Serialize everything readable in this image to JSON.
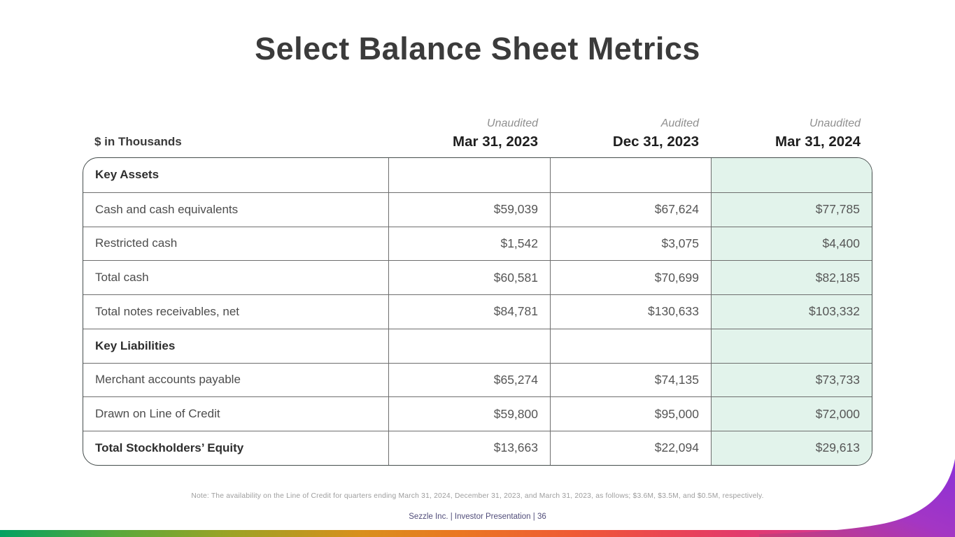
{
  "slide": {
    "title": "Select Balance Sheet Metrics",
    "note": "Note: The availability on the Line of Credit for quarters ending March 31, 2024, December 31, 2023, and March 31, 2023, as follows; $3.6M, $3.5M, and $0.5M, respectively.",
    "footer": "Sezzle Inc. | Investor Presentation | 36",
    "page_number": "36"
  },
  "table": {
    "units_label": "$ in Thousands",
    "columns": [
      {
        "audit_status": "Unaudited",
        "date": "Mar 31, 2023",
        "highlighted": false
      },
      {
        "audit_status": "Audited",
        "date": "Dec 31, 2023",
        "highlighted": false
      },
      {
        "audit_status": "Unaudited",
        "date": "Mar 31, 2024",
        "highlighted": true
      }
    ],
    "rows": [
      {
        "label": "Key Assets",
        "type": "section",
        "indent": 0,
        "values": [
          "",
          "",
          ""
        ]
      },
      {
        "label": "Cash and cash equivalents",
        "type": "item",
        "indent": 2,
        "values": [
          "$59,039",
          "$67,624",
          "$77,785"
        ]
      },
      {
        "label": "Restricted cash",
        "type": "item",
        "indent": 2,
        "values": [
          "$1,542",
          "$3,075",
          "$4,400"
        ]
      },
      {
        "label": "Total cash",
        "type": "item",
        "indent": 1,
        "values": [
          "$60,581",
          "$70,699",
          "$82,185"
        ]
      },
      {
        "label": "Total notes receivables, net",
        "type": "item",
        "indent": 1,
        "values": [
          "$84,781",
          "$130,633",
          "$103,332"
        ]
      },
      {
        "label": "Key Liabilities",
        "type": "section",
        "indent": 0,
        "values": [
          "",
          "",
          ""
        ]
      },
      {
        "label": "Merchant accounts payable",
        "type": "item",
        "indent": 1,
        "values": [
          "$65,274",
          "$74,135",
          "$73,733"
        ]
      },
      {
        "label": "Drawn on Line of Credit",
        "type": "item",
        "indent": 1,
        "values": [
          "$59,800",
          "$95,000",
          "$72,000"
        ]
      },
      {
        "label": "Total Stockholders’ Equity",
        "type": "total",
        "indent": 0,
        "values": [
          "$13,663",
          "$22,094",
          "$29,613"
        ]
      }
    ],
    "highlight_color": "#e2f3eb"
  },
  "decor": {
    "title_color": "#3b3b3b",
    "footer_color": "#514d7a",
    "note_color": "#9d9d9d",
    "bar_gradient": [
      "#03a162",
      "#9ba325",
      "#ea7722",
      "#ea4553",
      "#d73a8c",
      "#9334d2"
    ],
    "swoosh_colors": [
      "#c93e74",
      "#a436c4",
      "#8a30d8"
    ]
  }
}
